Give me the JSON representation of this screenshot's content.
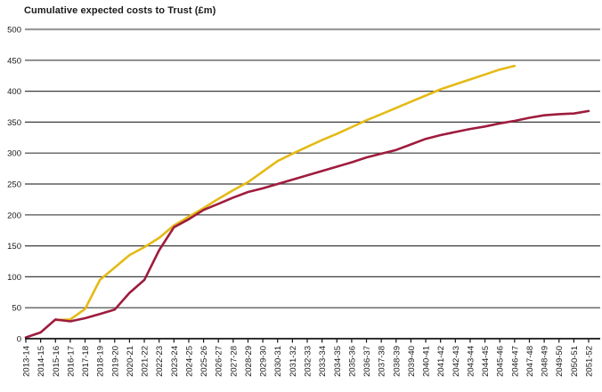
{
  "chart_data": {
    "type": "line",
    "title": "Cumulative expected costs to Trust (£m)",
    "xlabel": "",
    "ylabel": "",
    "ylim": [
      0,
      500
    ],
    "ytick_step": 50,
    "y_ticks": [
      0,
      50,
      100,
      150,
      200,
      250,
      300,
      350,
      400,
      450,
      500
    ],
    "grid": true,
    "legend_position": "none",
    "categories": [
      "2013-14",
      "2014-15",
      "2015-16",
      "2016-17",
      "2017-18",
      "2018-19",
      "2019-20",
      "2020-21",
      "2021-22",
      "2022-23",
      "2023-24",
      "2024-25",
      "2025-26",
      "2026-27",
      "2027-28",
      "2028-29",
      "2029-30",
      "2030-31",
      "2031-32",
      "2032-33",
      "2033-34",
      "2034-35",
      "2035-36",
      "2036-37",
      "2037-38",
      "2038-39",
      "2039-40",
      "2040-41",
      "2041-42",
      "2042-43",
      "2043-44",
      "2044-45",
      "2045-46",
      "2046-47",
      "2047-48",
      "2048-49",
      "2049-50",
      "2050-51",
      "2051-52"
    ],
    "series": [
      {
        "name": "Yellow line",
        "color": "#E4BA15",
        "values": [
          null,
          null,
          30,
          31,
          48,
          95,
          115,
          135,
          148,
          163,
          183,
          197,
          211,
          226,
          240,
          253,
          270,
          287,
          299,
          310,
          321,
          331,
          342,
          353,
          363,
          373,
          383,
          393,
          403,
          411,
          419,
          427,
          435,
          441,
          null,
          null,
          null,
          null,
          null
        ]
      },
      {
        "name": "Dark red line",
        "color": "#9E1C3E",
        "values": [
          2,
          10,
          31,
          28,
          33,
          40,
          47,
          74,
          95,
          143,
          180,
          193,
          208,
          218,
          228,
          237,
          243,
          250,
          257,
          264,
          271,
          278,
          285,
          293,
          299,
          305,
          314,
          323,
          329,
          334,
          339,
          343,
          348,
          352,
          357,
          361,
          363,
          364,
          368
        ]
      }
    ],
    "colors": {
      "gridline": "#3c3c3c",
      "top_gridline": "#9a9a9a",
      "axis": "#141414",
      "tick_label": "#1a1a1a"
    }
  }
}
